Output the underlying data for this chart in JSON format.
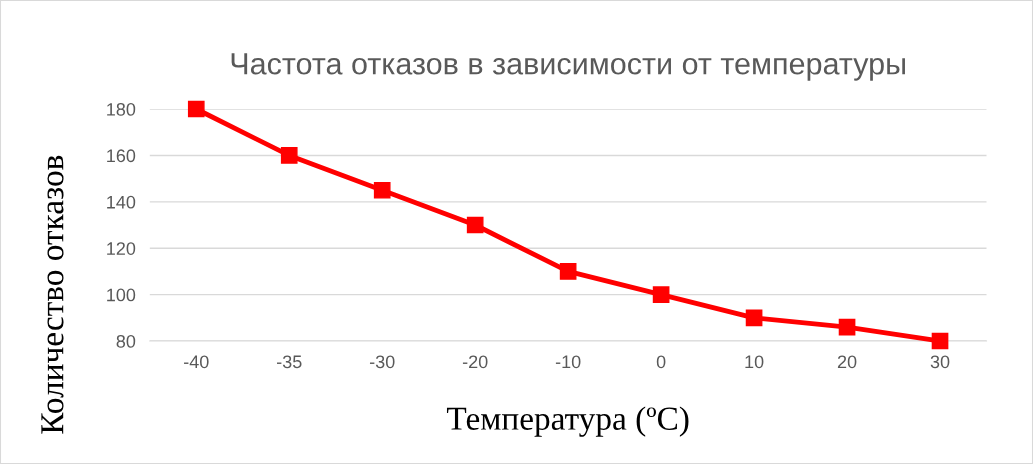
{
  "chart_data": {
    "type": "line",
    "title": "Частота отказов в зависимости от температуры",
    "xlabel": "Температура (ºC)",
    "ylabel": "Количество отказов",
    "categories": [
      "-40",
      "-35",
      "-30",
      "-20",
      "-10",
      "0",
      "10",
      "20",
      "30"
    ],
    "series": [
      {
        "color": "#ff0000",
        "values": [
          180,
          160,
          145,
          130,
          110,
          100,
          90,
          86,
          80
        ]
      }
    ],
    "ylim": [
      80,
      180
    ],
    "yticks": [
      80,
      100,
      120,
      140,
      160,
      180
    ],
    "grid": "y",
    "marker": "square",
    "line_style": "solid",
    "legend": false
  }
}
